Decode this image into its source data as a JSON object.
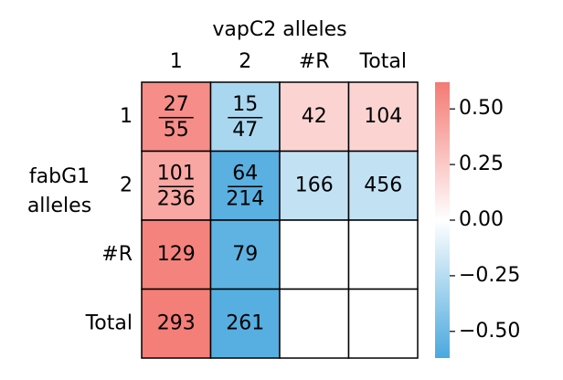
{
  "chart_data": {
    "type": "heatmap",
    "title": "vapC2 alleles",
    "ylabel": [
      "fabG1",
      "alleles"
    ],
    "x_categories": [
      "1",
      "2",
      "#R",
      "Total"
    ],
    "y_categories": [
      "1",
      "2",
      "#R",
      "Total"
    ],
    "values": [
      [
        0.53,
        -0.29,
        0.2,
        0.2
      ],
      [
        0.41,
        -0.57,
        -0.21,
        -0.21
      ],
      [
        0.58,
        -0.55,
        null,
        null
      ],
      [
        0.6,
        -0.58,
        null,
        null
      ]
    ],
    "labels": [
      [
        {
          "num": 27,
          "den": 55
        },
        {
          "num": 15,
          "den": 47
        },
        42,
        104
      ],
      [
        {
          "num": 101,
          "den": 236
        },
        {
          "num": 64,
          "den": 214
        },
        166,
        456
      ],
      [
        129,
        79,
        null,
        null
      ],
      [
        293,
        261,
        null,
        null
      ]
    ],
    "colormap": [
      "#4aa9de",
      "#ffffff",
      "#f47a74"
    ],
    "zlim": [
      -0.62,
      0.62
    ],
    "zticks": [
      {
        "value": -0.5,
        "label": "−0.50"
      },
      {
        "value": -0.25,
        "label": "−0.25"
      },
      {
        "value": 0,
        "label": "0.00"
      },
      {
        "value": 0.25,
        "label": "0.25"
      },
      {
        "value": 0.5,
        "label": "0.50"
      }
    ]
  }
}
